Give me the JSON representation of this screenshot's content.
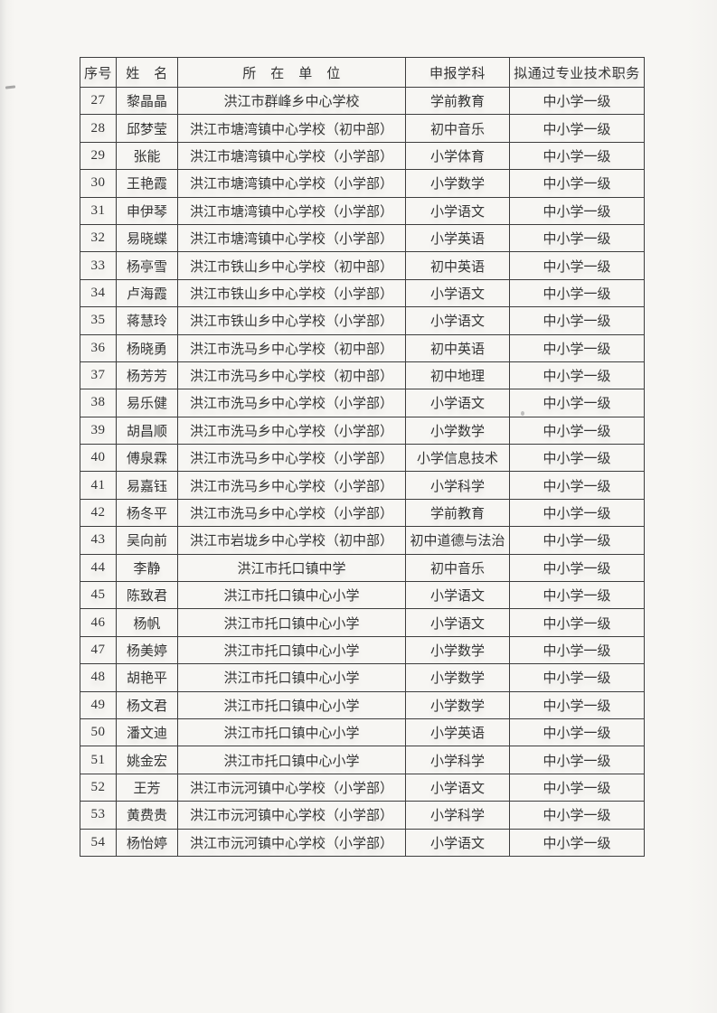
{
  "document": {
    "kind": "scanned-roster-table",
    "colors": {
      "paper": "#f7f6f3",
      "ink": "#353535",
      "border": "#3d3d3d"
    },
    "table": {
      "columns": [
        {
          "key": "index",
          "label": "序号"
        },
        {
          "key": "name",
          "label": "姓　名"
        },
        {
          "key": "unit",
          "label": "所　在　单　位"
        },
        {
          "key": "subject",
          "label": "申报学科"
        },
        {
          "key": "title",
          "label": "拟通过专业技术职务"
        }
      ],
      "rows": [
        {
          "index": "27",
          "name": "黎晶晶",
          "unit": "洪江市群峰乡中心学校",
          "subject": "学前教育",
          "title": "中小学一级"
        },
        {
          "index": "28",
          "name": "邱梦莹",
          "unit": "洪江市塘湾镇中心学校（初中部）",
          "subject": "初中音乐",
          "title": "中小学一级"
        },
        {
          "index": "29",
          "name": "张能",
          "unit": "洪江市塘湾镇中心学校（小学部）",
          "subject": "小学体育",
          "title": "中小学一级"
        },
        {
          "index": "30",
          "name": "王艳霞",
          "unit": "洪江市塘湾镇中心学校（小学部）",
          "subject": "小学数学",
          "title": "中小学一级"
        },
        {
          "index": "31",
          "name": "申伊琴",
          "unit": "洪江市塘湾镇中心学校（小学部）",
          "subject": "小学语文",
          "title": "中小学一级"
        },
        {
          "index": "32",
          "name": "易晓蝶",
          "unit": "洪江市塘湾镇中心学校（小学部）",
          "subject": "小学英语",
          "title": "中小学一级"
        },
        {
          "index": "33",
          "name": "杨亭雪",
          "unit": "洪江市铁山乡中心学校（初中部）",
          "subject": "初中英语",
          "title": "中小学一级"
        },
        {
          "index": "34",
          "name": "卢海霞",
          "unit": "洪江市铁山乡中心学校（小学部）",
          "subject": "小学语文",
          "title": "中小学一级"
        },
        {
          "index": "35",
          "name": "蒋慧玲",
          "unit": "洪江市铁山乡中心学校（小学部）",
          "subject": "小学语文",
          "title": "中小学一级"
        },
        {
          "index": "36",
          "name": "杨晓勇",
          "unit": "洪江市洗马乡中心学校（初中部）",
          "subject": "初中英语",
          "title": "中小学一级"
        },
        {
          "index": "37",
          "name": "杨芳芳",
          "unit": "洪江市洗马乡中心学校（初中部）",
          "subject": "初中地理",
          "title": "中小学一级"
        },
        {
          "index": "38",
          "name": "易乐健",
          "unit": "洪江市洗马乡中心学校（小学部）",
          "subject": "小学语文",
          "title": "中小学一级"
        },
        {
          "index": "39",
          "name": "胡昌顺",
          "unit": "洪江市洗马乡中心学校（小学部）",
          "subject": "小学数学",
          "title": "中小学一级"
        },
        {
          "index": "40",
          "name": "傅泉霖",
          "unit": "洪江市洗马乡中心学校（小学部）",
          "subject": "小学信息技术",
          "title": "中小学一级"
        },
        {
          "index": "41",
          "name": "易嘉钰",
          "unit": "洪江市洗马乡中心学校（小学部）",
          "subject": "小学科学",
          "title": "中小学一级"
        },
        {
          "index": "42",
          "name": "杨冬平",
          "unit": "洪江市洗马乡中心学校（小学部）",
          "subject": "学前教育",
          "title": "中小学一级"
        },
        {
          "index": "43",
          "name": "吴向前",
          "unit": "洪江市岩垅乡中心学校（初中部）",
          "subject": "初中道德与法治",
          "title": "中小学一级"
        },
        {
          "index": "44",
          "name": "李静",
          "unit": "洪江市托口镇中学",
          "subject": "初中音乐",
          "title": "中小学一级"
        },
        {
          "index": "45",
          "name": "陈致君",
          "unit": "洪江市托口镇中心小学",
          "subject": "小学语文",
          "title": "中小学一级"
        },
        {
          "index": "46",
          "name": "杨帆",
          "unit": "洪江市托口镇中心小学",
          "subject": "小学语文",
          "title": "中小学一级"
        },
        {
          "index": "47",
          "name": "杨美婷",
          "unit": "洪江市托口镇中心小学",
          "subject": "小学数学",
          "title": "中小学一级"
        },
        {
          "index": "48",
          "name": "胡艳平",
          "unit": "洪江市托口镇中心小学",
          "subject": "小学数学",
          "title": "中小学一级"
        },
        {
          "index": "49",
          "name": "杨文君",
          "unit": "洪江市托口镇中心小学",
          "subject": "小学数学",
          "title": "中小学一级"
        },
        {
          "index": "50",
          "name": "潘文迪",
          "unit": "洪江市托口镇中心小学",
          "subject": "小学英语",
          "title": "中小学一级"
        },
        {
          "index": "51",
          "name": "姚金宏",
          "unit": "洪江市托口镇中心小学",
          "subject": "小学科学",
          "title": "中小学一级"
        },
        {
          "index": "52",
          "name": "王芳",
          "unit": "洪江市沅河镇中心学校（小学部）",
          "subject": "小学语文",
          "title": "中小学一级"
        },
        {
          "index": "53",
          "name": "黄费贵",
          "unit": "洪江市沅河镇中心学校（小学部）",
          "subject": "小学科学",
          "title": "中小学一级"
        },
        {
          "index": "54",
          "name": "杨怡婷",
          "unit": "洪江市沅河镇中心学校（小学部）",
          "subject": "小学语文",
          "title": "中小学一级"
        }
      ]
    }
  }
}
